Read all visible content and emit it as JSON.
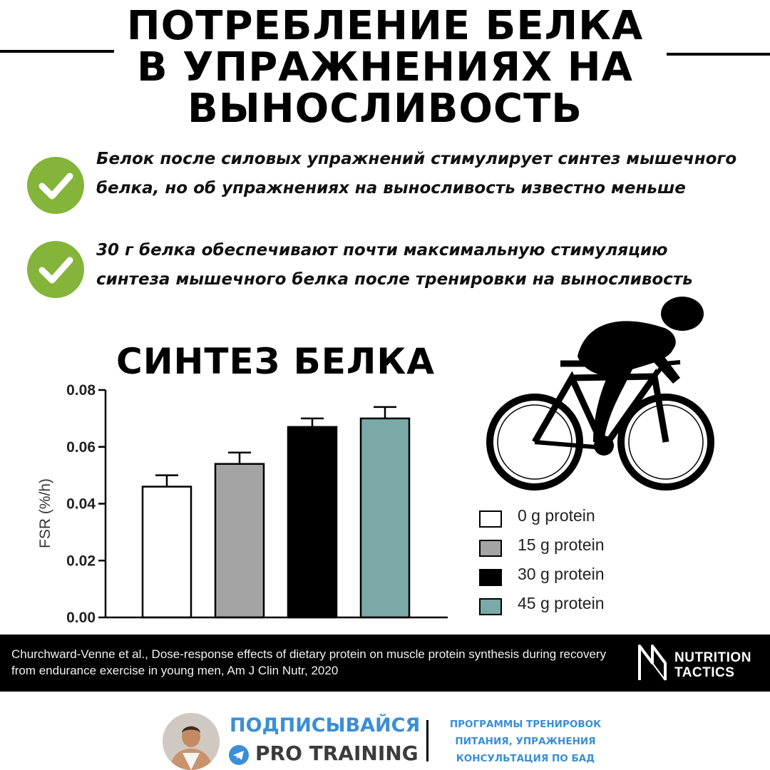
{
  "header": {
    "title_lines": [
      "ПОТРЕБЛЕНИЕ БЕЛКА",
      "В УПРАЖНЕНИЯХ НА",
      "ВЫНОСЛИВОСТЬ"
    ]
  },
  "bullets": [
    {
      "icon": "check-circle-icon",
      "text": "Белок после силовых упражнений стимулирует синтез мышечного белка, но об упражнениях на выносливость известно меньше"
    },
    {
      "icon": "check-circle-icon",
      "text": "30 г белка обеспечивают почти максимальную стимуляцию синтеза мышечного белка после тренировки на выносливость"
    }
  ],
  "colors": {
    "accent_green": "#84b43a",
    "footer_blue": "#3a8fd6"
  },
  "chart_data": {
    "type": "bar",
    "title": "СИНТЕЗ БЕЛКА",
    "ylabel": "FSR (%/h)",
    "xlabel": "",
    "ylim": [
      0,
      0.08
    ],
    "yticks": [
      "0.00",
      "0.02",
      "0.04",
      "0.06",
      "0.08"
    ],
    "categories": [
      "0 g protein",
      "15 g protein",
      "30 g protein",
      "45 g protein"
    ],
    "values": [
      0.046,
      0.054,
      0.067,
      0.07
    ],
    "error_upper": [
      0.05,
      0.058,
      0.07,
      0.074
    ],
    "bar_colors": [
      "#ffffff",
      "#a4a4a4",
      "#000000",
      "#7aa9a8"
    ],
    "legend": [
      "0 g protein",
      "15 g protein",
      "30 g protein",
      "45 g protein"
    ],
    "legend_position": "right",
    "grid": false
  },
  "citation": {
    "text": "Churchward-Venne et al., Dose-response effects of dietary protein on muscle protein synthesis during recovery from endurance exercise in young men, Am J Clin Nutr, 2020",
    "brand_line1": "NUTRITION",
    "brand_line2": "TACTICS"
  },
  "footer": {
    "subscribe_label": "ПОДПИСЫВАЙСЯ",
    "channel_icon": "telegram-icon",
    "channel_name": "PRO TRAINING",
    "services": [
      "ПРОГРАММЫ ТРЕНИРОВОК",
      "ПИТАНИЯ, УПРАЖНЕНИЯ",
      "КОНСУЛЬТАЦИЯ ПО БАД"
    ]
  }
}
